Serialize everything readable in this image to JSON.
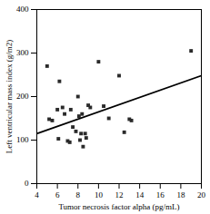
{
  "chart_data": {
    "type": "scatter",
    "xlabel": "Tumor necrosis factor alpha (pg/mL)",
    "ylabel": "Left ventricular mass index (g/m2)",
    "xlim": [
      4,
      20
    ],
    "ylim": [
      0,
      400
    ],
    "xticks": [
      4,
      6,
      8,
      10,
      12,
      14,
      16,
      18,
      20
    ],
    "yticks": [
      0,
      100,
      200,
      300,
      400
    ],
    "series": [
      {
        "type": "scatter",
        "marker": "square",
        "color": "#2a2a2a",
        "x": [
          5.0,
          5.2,
          6.0,
          6.2,
          6.5,
          6.7,
          7.0,
          7.3,
          7.5,
          7.8,
          8.0,
          8.1,
          8.2,
          8.3,
          8.4,
          8.5,
          8.7,
          8.8,
          9.0,
          9.2,
          10.0,
          10.5,
          11.0,
          12.0,
          12.5,
          13.0,
          13.2,
          19.0,
          5.5,
          6.1,
          7.2
        ],
        "values": [
          270,
          148,
          170,
          235,
          175,
          160,
          98,
          170,
          130,
          120,
          200,
          155,
          100,
          115,
          160,
          85,
          115,
          105,
          180,
          175,
          280,
          178,
          150,
          248,
          118,
          148,
          145,
          305,
          145,
          103,
          95
        ]
      },
      {
        "type": "line",
        "line_style": "solid",
        "color": "#000000",
        "x": [
          4,
          20
        ],
        "values": [
          115,
          248
        ]
      }
    ]
  }
}
